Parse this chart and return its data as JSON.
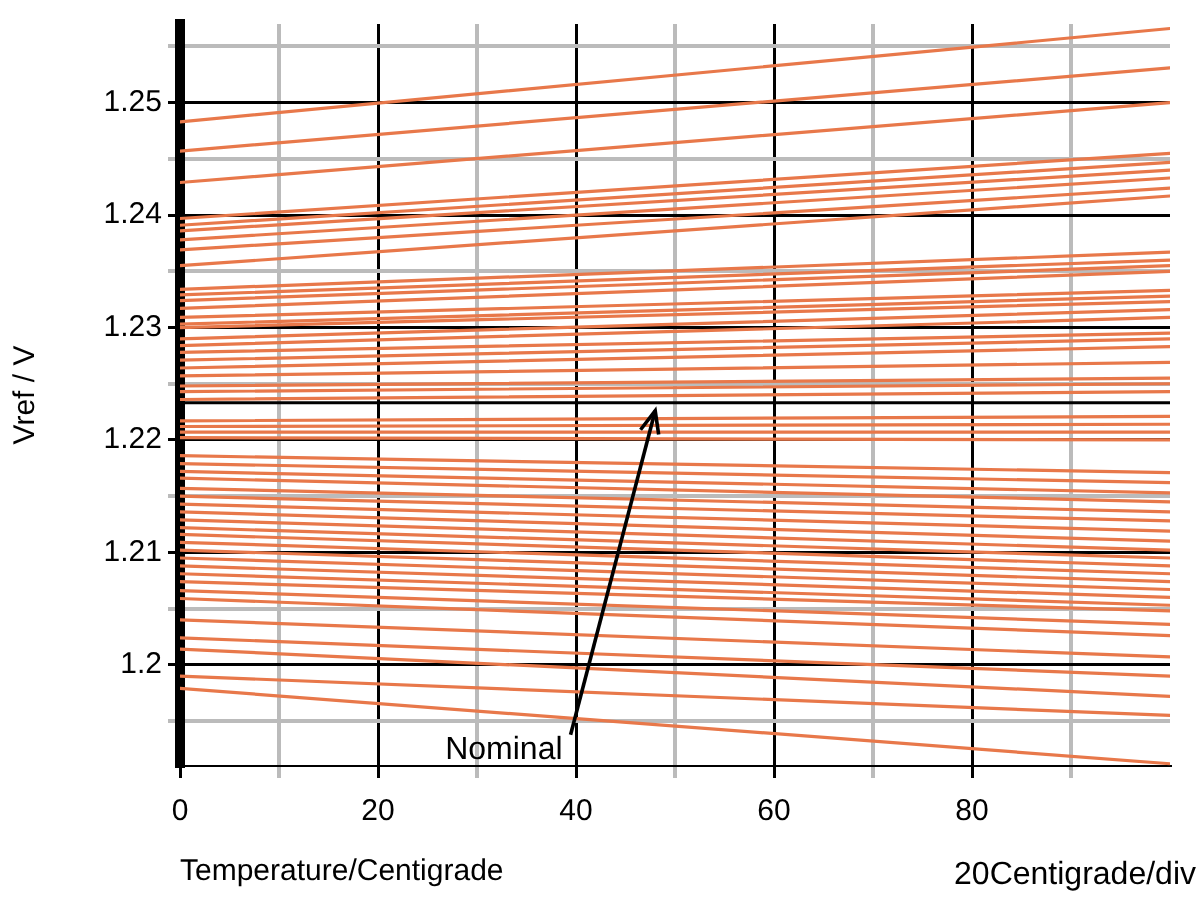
{
  "chart_data": {
    "type": "line",
    "xlabel": "Temperature/Centigrade",
    "ylabel": "Vref / V",
    "x": [
      0,
      100
    ],
    "xlim": [
      0,
      100
    ],
    "xticks": [
      0,
      {
        "value": 10,
        "label": null
      },
      20,
      {
        "value": 30,
        "label": null
      },
      40,
      {
        "value": 50,
        "label": null
      },
      60,
      {
        "value": 70,
        "label": null
      },
      80,
      {
        "value": 90,
        "label": null
      }
    ],
    "ylim": [
      1.191,
      1.257
    ],
    "yticks": [
      {
        "value": 1.195,
        "label": null
      },
      1.2,
      {
        "value": 1.205,
        "label": null
      },
      1.21,
      {
        "value": 1.215,
        "label": null
      },
      1.22,
      {
        "value": 1.225,
        "label": null
      },
      1.23,
      {
        "value": 1.235,
        "label": null
      },
      1.24,
      {
        "value": 1.245,
        "label": null
      },
      1.25,
      {
        "value": 1.255,
        "label": null
      }
    ],
    "grid": true,
    "legend": false,
    "series": [
      {
        "color": "#e8784a",
        "values": [
          1.2483,
          1.2566
        ]
      },
      {
        "color": "#e8784a",
        "values": [
          1.2457,
          1.2531
        ]
      },
      {
        "color": "#e8784a",
        "values": [
          1.2429,
          1.25
        ]
      },
      {
        "color": "#e8784a",
        "values": [
          1.2397,
          1.2455
        ]
      },
      {
        "color": "#e8784a",
        "values": [
          1.2391,
          1.2447
        ]
      },
      {
        "color": "#e8784a",
        "values": [
          1.2386,
          1.244
        ]
      },
      {
        "color": "#e8784a",
        "values": [
          1.2378,
          1.2433
        ]
      },
      {
        "color": "#e8784a",
        "values": [
          1.2369,
          1.2424
        ]
      },
      {
        "color": "#e8784a",
        "values": [
          1.2355,
          1.2417
        ]
      },
      {
        "color": "#e8784a",
        "values": [
          1.2334,
          1.2367
        ]
      },
      {
        "color": "#e8784a",
        "values": [
          1.2329,
          1.236
        ]
      },
      {
        "color": "#e8784a",
        "values": [
          1.2324,
          1.2355
        ]
      },
      {
        "color": "#e8784a",
        "values": [
          1.2317,
          1.235
        ]
      },
      {
        "color": "#e8784a",
        "values": [
          1.2309,
          1.2333
        ]
      },
      {
        "color": "#e8784a",
        "values": [
          1.2303,
          1.2328
        ]
      },
      {
        "color": "#e8784a",
        "values": [
          1.23,
          1.2323
        ]
      },
      {
        "color": "#e8784a",
        "values": [
          1.229,
          1.2316
        ]
      },
      {
        "color": "#e8784a",
        "values": [
          1.2284,
          1.2309
        ]
      },
      {
        "color": "#e8784a",
        "values": [
          1.2278,
          1.2295
        ]
      },
      {
        "color": "#e8784a",
        "values": [
          1.2271,
          1.229
        ]
      },
      {
        "color": "#e8784a",
        "values": [
          1.2264,
          1.2283
        ]
      },
      {
        "color": "#e8784a",
        "values": [
          1.2257,
          1.2269
        ]
      },
      {
        "color": "#e8784a",
        "values": [
          1.2248,
          1.2255
        ]
      },
      {
        "color": "#e8784a",
        "values": [
          1.2243,
          1.225
        ]
      },
      {
        "color": "#e8784a",
        "values": [
          1.2236,
          1.2243
        ]
      },
      {
        "color": "#e8784a",
        "values": [
          1.2217,
          1.2221
        ]
      },
      {
        "color": "#e8784a",
        "values": [
          1.2212,
          1.2214
        ]
      },
      {
        "color": "#e8784a",
        "values": [
          1.2207,
          1.2207
        ]
      },
      {
        "color": "#e8784a",
        "values": [
          1.2202,
          1.22
        ]
      },
      {
        "color": "#e8784a",
        "values": [
          1.2186,
          1.2171
        ]
      },
      {
        "color": "#e8784a",
        "values": [
          1.2179,
          1.2162
        ]
      },
      {
        "color": "#e8784a",
        "values": [
          1.2172,
          1.2153
        ]
      },
      {
        "color": "#e8784a",
        "values": [
          1.2166,
          1.2145
        ]
      },
      {
        "color": "#e8784a",
        "values": [
          1.2157,
          1.2136
        ]
      },
      {
        "color": "#e8784a",
        "values": [
          1.215,
          1.2128
        ]
      },
      {
        "color": "#e8784a",
        "values": [
          1.2143,
          1.2119
        ]
      },
      {
        "color": "#e8784a",
        "values": [
          1.2136,
          1.211
        ]
      },
      {
        "color": "#e8784a",
        "values": [
          1.2129,
          1.2102
        ]
      },
      {
        "color": "#e8784a",
        "values": [
          1.2122,
          1.2095
        ]
      },
      {
        "color": "#e8784a",
        "values": [
          1.2116,
          1.2088
        ]
      },
      {
        "color": "#e8784a",
        "values": [
          1.2109,
          1.2081
        ]
      },
      {
        "color": "#e8784a",
        "values": [
          1.2102,
          1.2074
        ]
      },
      {
        "color": "#e8784a",
        "values": [
          1.2095,
          1.2067
        ]
      },
      {
        "color": "#e8784a",
        "values": [
          1.2088,
          1.206
        ]
      },
      {
        "color": "#e8784a",
        "values": [
          1.2081,
          1.2053
        ]
      },
      {
        "color": "#e8784a",
        "values": [
          1.2074,
          1.2048
        ]
      },
      {
        "color": "#e8784a",
        "values": [
          1.2066,
          1.2036
        ]
      },
      {
        "color": "#e8784a",
        "values": [
          1.2059,
          1.2026
        ]
      },
      {
        "color": "#e8784a",
        "values": [
          1.204,
          1.2007
        ]
      },
      {
        "color": "#e8784a",
        "values": [
          1.2024,
          1.199
        ]
      },
      {
        "color": "#e8784a",
        "values": [
          1.2014,
          1.1972
        ]
      },
      {
        "color": "#e8784a",
        "values": [
          1.199,
          1.1955
        ]
      },
      {
        "color": "#e8784a",
        "values": [
          1.1979,
          1.1912
        ]
      }
    ],
    "ref_lines": [
      {
        "axis": "y",
        "value": 1.2233,
        "color": "#000000"
      }
    ],
    "annotations": [
      {
        "text": "Nominal",
        "x": 48,
        "y": 1.2226
      },
      "20Centigrade/div"
    ]
  }
}
